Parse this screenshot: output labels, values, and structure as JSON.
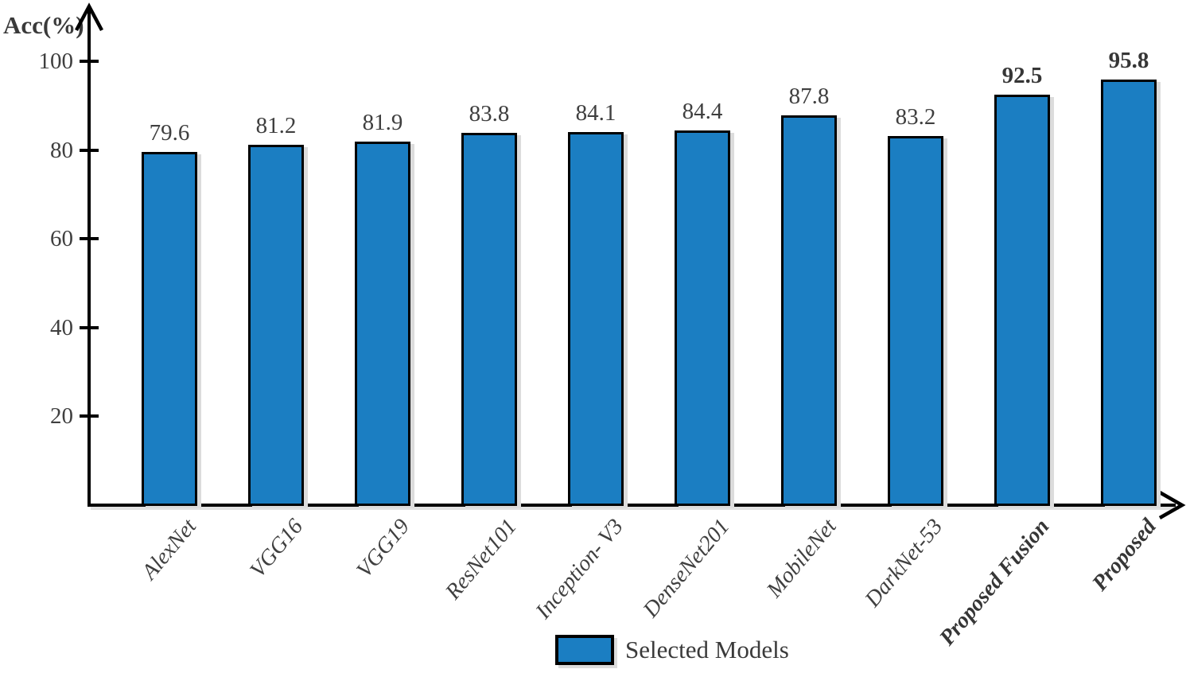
{
  "chart_data": {
    "type": "bar",
    "title": "",
    "ylabel": "Acc(%)",
    "xlabel": "",
    "categories": [
      "AlexNet",
      "VGG16",
      "VGG19",
      "ResNet101",
      "Inception- V3",
      "DenseNet201",
      "MobileNet",
      "DarkNet-53",
      "Proposed Fusion",
      "Proposed"
    ],
    "values": [
      79.6,
      81.2,
      81.9,
      83.8,
      84.1,
      84.4,
      87.8,
      83.2,
      92.5,
      95.8
    ],
    "value_labels": [
      "79.6",
      "81.2",
      "81.9",
      "83.8",
      "84.1",
      "84.4",
      "87.8",
      "83.2",
      "92.5",
      "95.8"
    ],
    "emphasized_categories": [
      "Proposed Fusion",
      "Proposed"
    ],
    "yticks": [
      20,
      40,
      60,
      80,
      100
    ],
    "ylim": [
      0,
      105
    ],
    "grid": false,
    "legend": {
      "label": "Selected Models",
      "position": "bottom-center"
    },
    "colors": {
      "bar_fill": "#1b7ec2",
      "bar_border": "#000000",
      "axis": "#000000",
      "text": "#3f3f3f"
    }
  }
}
